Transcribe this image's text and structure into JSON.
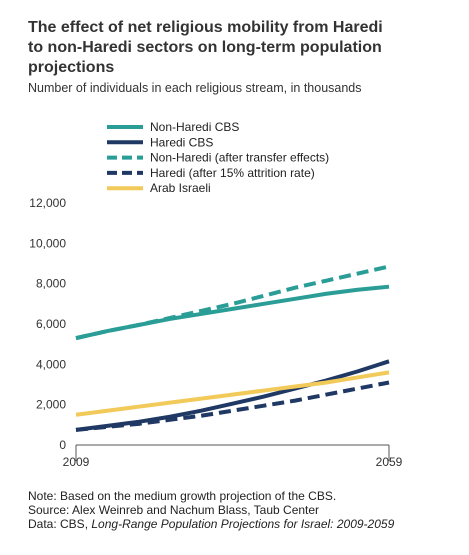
{
  "chart_data": {
    "type": "line",
    "title": [
      "The effect of net religious mobility from Haredi",
      "to non-Haredi sectors on long-term population",
      "projections"
    ],
    "subtitle": "Number of individuals in each religious stream, in thousands",
    "x": [
      2009,
      2014,
      2019,
      2024,
      2029,
      2034,
      2039,
      2044,
      2049,
      2054,
      2059
    ],
    "series": [
      {
        "name": "Non-Haredi CBS",
        "color": "#2a9d96",
        "dashed": false,
        "values": [
          5300,
          5650,
          5950,
          6250,
          6500,
          6750,
          7000,
          7250,
          7500,
          7700,
          7850
        ]
      },
      {
        "name": "Haredi CBS",
        "color": "#1f3864",
        "dashed": false,
        "values": [
          750,
          950,
          1150,
          1400,
          1700,
          2050,
          2400,
          2800,
          3200,
          3650,
          4150
        ]
      },
      {
        "name": "Non-Haredi (after transfer effects)",
        "color": "#2a9d96",
        "dashed": true,
        "values": [
          5300,
          5650,
          5950,
          6300,
          6650,
          7000,
          7400,
          7800,
          8150,
          8500,
          8850
        ]
      },
      {
        "name": "Haredi (after 15% attrition rate)",
        "color": "#1f3864",
        "dashed": true,
        "values": [
          750,
          900,
          1050,
          1250,
          1450,
          1700,
          1950,
          2200,
          2500,
          2800,
          3100
        ]
      },
      {
        "name": "Arab Israeli",
        "color": "#f2ca5a",
        "dashed": false,
        "values": [
          1500,
          1700,
          1900,
          2100,
          2300,
          2500,
          2700,
          2900,
          3100,
          3350,
          3600
        ]
      }
    ],
    "xlim": [
      2009,
      2059
    ],
    "xticks": [
      2009,
      2059
    ],
    "ylim": [
      0,
      12000
    ],
    "yticks": [
      0,
      {
        "value": 2000,
        "label": "2,000"
      },
      {
        "value": 4000,
        "label": "4,000"
      },
      {
        "value": 6000,
        "label": "6,000"
      },
      {
        "value": 8000,
        "label": "8,000"
      },
      {
        "value": 10000,
        "label": "10,000"
      },
      {
        "value": 12000,
        "label": "12,000"
      }
    ],
    "grid": false,
    "note": "Note: Based on the medium growth projection of the CBS.",
    "source": "Source: Alex Weinreb and Nachum Blass, Taub Center",
    "data_source": {
      "prefix": "Data: CBS,",
      "title": "Long-Range Population Projections for Israel: 2009-2059"
    }
  }
}
